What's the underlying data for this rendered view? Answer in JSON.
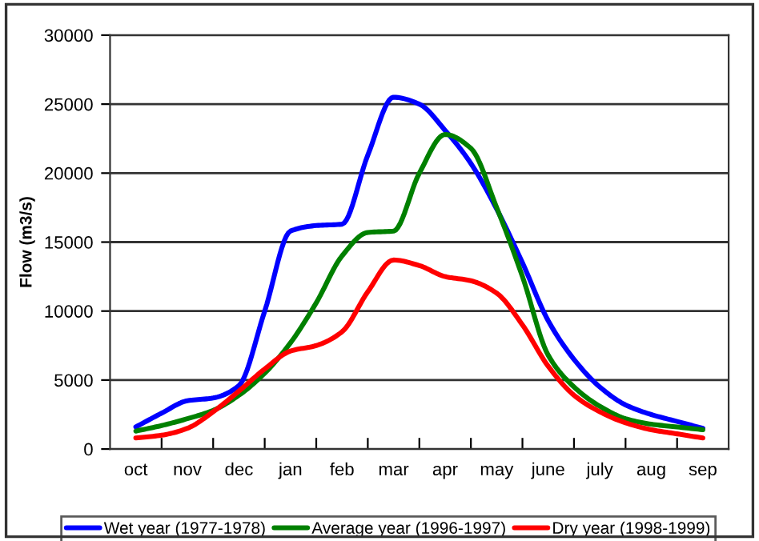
{
  "chart_data": {
    "type": "line",
    "ylabel": "Flow (m3/s)",
    "categories": [
      "oct",
      null,
      "nov",
      null,
      "dec",
      null,
      "jan",
      null,
      "feb",
      null,
      "mar",
      null,
      "apr",
      null,
      "may",
      null,
      "june",
      null,
      "july",
      null,
      "aug",
      null,
      "sep"
    ],
    "ylim": [
      0,
      30000
    ],
    "yticks": [
      0,
      5000,
      10000,
      15000,
      20000,
      25000,
      30000
    ],
    "grid": "y",
    "legend": "bottom",
    "line_style": "solid",
    "series": [
      {
        "name": "Wet year (1977-1978)",
        "color": "#0000ff",
        "values": [
          1600,
          2600,
          3500,
          3700,
          4600,
          10000,
          15800,
          16200,
          16300,
          21300,
          25500,
          25000,
          23100,
          20700,
          17400,
          13500,
          9300,
          6500,
          4500,
          3200,
          2500,
          2000,
          1500
        ]
      },
      {
        "name": "Average year (1996-1997)",
        "color": "#008000",
        "values": [
          1300,
          1700,
          2200,
          2800,
          3900,
          5500,
          7700,
          10600,
          14000,
          15700,
          15800,
          20000,
          22800,
          21800,
          17500,
          12500,
          6800,
          4500,
          3100,
          2200,
          1800,
          1600,
          1400
        ]
      },
      {
        "name": "Dry year (1998-1999)",
        "color": "#ff0000",
        "values": [
          800,
          1000,
          1500,
          2700,
          4200,
          5800,
          7100,
          7500,
          8500,
          11400,
          13700,
          13300,
          12500,
          12200,
          11300,
          9000,
          6000,
          3900,
          2700,
          1900,
          1400,
          1100,
          800
        ]
      }
    ]
  }
}
